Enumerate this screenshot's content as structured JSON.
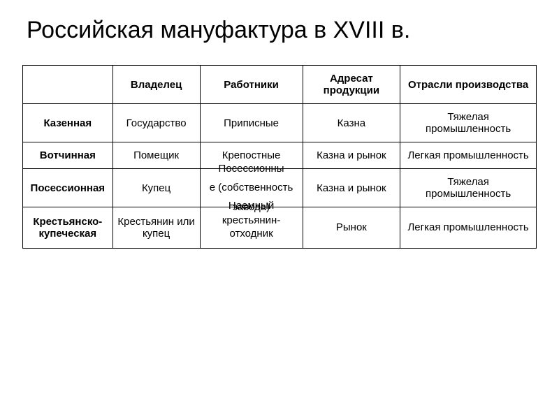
{
  "slide": {
    "title": "Российская мануфактура в XVIII в.",
    "background_color": "#ffffff",
    "text_color": "#000000",
    "title_fontsize": 34,
    "cell_fontsize": 15,
    "border_color": "#000000"
  },
  "table": {
    "columns": [
      "",
      "Владелец",
      "Работники",
      "Адресат продукции",
      "Отрасли производства"
    ],
    "column_widths_pct": [
      17.5,
      17,
      20,
      19,
      26.5
    ],
    "rows": [
      {
        "head": "Казенная",
        "owner": "Государство",
        "workers": "Приписные",
        "recipient": "Казна",
        "industry": "Тяжелая промышленность"
      },
      {
        "head": "Вотчинная",
        "owner": "Помещик",
        "workers": "Крепостные",
        "workers_overflow_below": "Посессионны",
        "recipient": "Казна и рынок",
        "industry": "Легкая промышленность"
      },
      {
        "head": "Посессионная",
        "owner": "Купец",
        "workers": "е (собственность",
        "workers_overflow_below": "Наемный",
        "recipient": "Казна и рынок",
        "industry": "Тяжелая промышленность"
      },
      {
        "head": "Крестьянско-купеческая",
        "owner": "Крестьянин или купец",
        "workers_overflow_above": "завода)",
        "workers": "крестьянин-отходник",
        "recipient": "Рынок",
        "industry": "Легкая промышленность"
      }
    ]
  }
}
